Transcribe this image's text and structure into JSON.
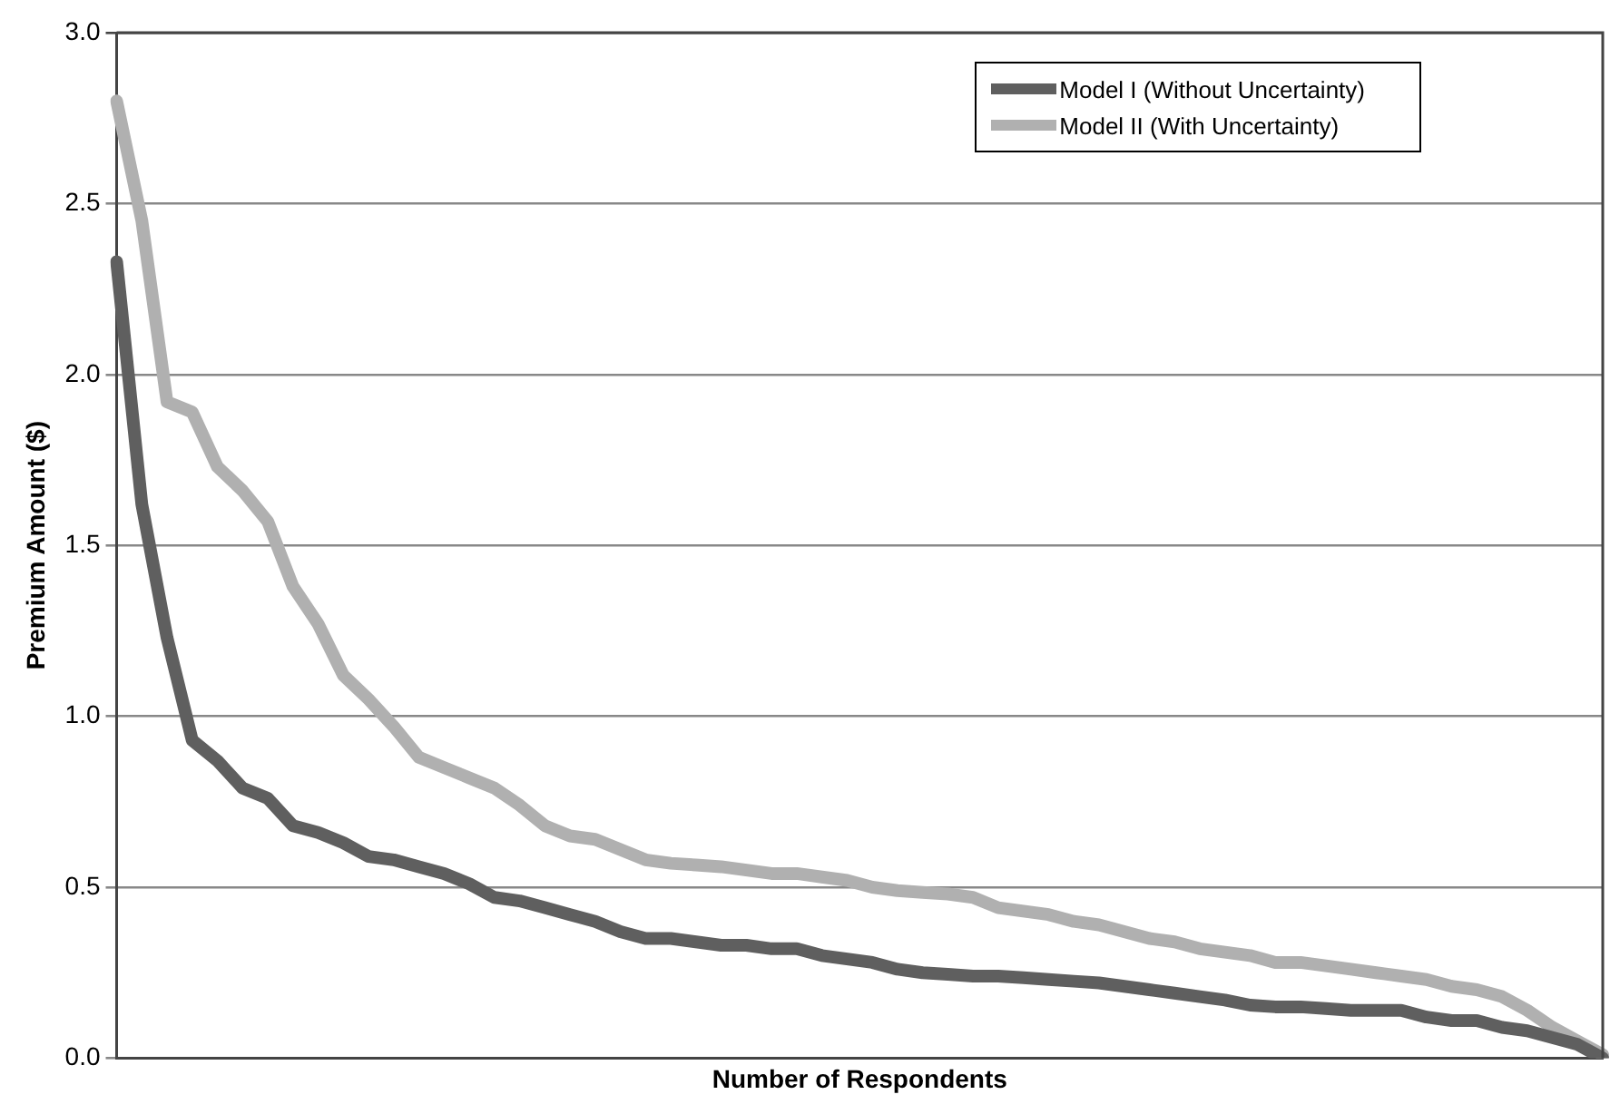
{
  "chart_data": {
    "type": "line",
    "xlabel": "Number of Respondents",
    "ylabel": "Premium Amount ($)",
    "categories": [
      null,
      null,
      null,
      null,
      null,
      null,
      null,
      null,
      null,
      null,
      null,
      null,
      null,
      null,
      null,
      null,
      null,
      null,
      null,
      null,
      null,
      null,
      null,
      null,
      null,
      null,
      null,
      null,
      null,
      null,
      null,
      null,
      null,
      null,
      null,
      null,
      null,
      null,
      null,
      null,
      null,
      null,
      null,
      null,
      null,
      null,
      null,
      null,
      null,
      null,
      null,
      null,
      null,
      null,
      null,
      null,
      null,
      null,
      null,
      null
    ],
    "series": [
      {
        "name": "Model I (Without Uncertainty)",
        "color": "#5f5f5f",
        "values": [
          2.33,
          1.62,
          1.23,
          0.93,
          0.87,
          0.79,
          0.76,
          0.68,
          0.66,
          0.63,
          0.59,
          0.58,
          0.56,
          0.54,
          0.51,
          0.47,
          0.46,
          0.44,
          0.42,
          0.4,
          0.37,
          0.35,
          0.35,
          0.34,
          0.33,
          0.33,
          0.32,
          0.32,
          0.3,
          0.29,
          0.28,
          0.26,
          0.25,
          0.245,
          0.24,
          0.24,
          0.235,
          0.23,
          0.225,
          0.22,
          0.21,
          0.2,
          0.19,
          0.18,
          0.17,
          0.155,
          0.15,
          0.15,
          0.145,
          0.14,
          0.14,
          0.14,
          0.12,
          0.11,
          0.11,
          0.09,
          0.08,
          0.06,
          0.04,
          0.0
        ]
      },
      {
        "name": "Model II (With Uncertainty)",
        "color": "#b0b0b0",
        "values": [
          2.8,
          2.45,
          1.92,
          1.89,
          1.73,
          1.66,
          1.57,
          1.38,
          1.27,
          1.12,
          1.05,
          0.97,
          0.88,
          0.85,
          0.82,
          0.79,
          0.74,
          0.68,
          0.65,
          0.64,
          0.61,
          0.58,
          0.57,
          0.565,
          0.56,
          0.55,
          0.54,
          0.54,
          0.53,
          0.52,
          0.5,
          0.49,
          0.485,
          0.48,
          0.47,
          0.44,
          0.43,
          0.42,
          0.4,
          0.39,
          0.37,
          0.35,
          0.34,
          0.32,
          0.31,
          0.3,
          0.28,
          0.28,
          0.27,
          0.26,
          0.25,
          0.24,
          0.23,
          0.21,
          0.2,
          0.18,
          0.14,
          0.09,
          0.05,
          0.01
        ]
      }
    ],
    "ylim": [
      0,
      3
    ],
    "yticks": [
      {
        "value": 0,
        "label": "0.0"
      },
      0.5,
      {
        "value": 1,
        "label": "1.0"
      },
      1.5,
      {
        "value": 2,
        "label": "2.0"
      },
      2.5,
      {
        "value": 3,
        "label": "3.0"
      }
    ],
    "grid": "y",
    "legend": "top right",
    "tick_labels": "y",
    "marker": "none",
    "line_style": "solid"
  }
}
